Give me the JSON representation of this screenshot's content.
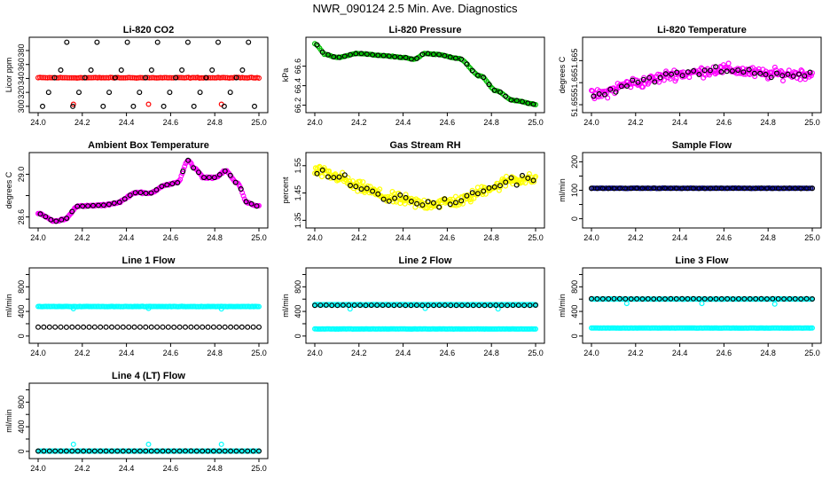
{
  "main_title": "NWR_090124  2.5 Min. Ave. Diagnostics",
  "colors": {
    "red": "#ff0000",
    "green": "#00c000",
    "magenta": "#ff00ff",
    "yellow": "#ffff00",
    "navy": "#000080",
    "cyan": "#00ffff",
    "black": "#000000"
  },
  "chart_data": [
    {
      "id": "co2",
      "type": "scatter",
      "title": "Li-820 CO2",
      "ylabel": "Licor ppm",
      "xlim": [
        24.0,
        25.0
      ],
      "ylim": [
        296,
        394
      ],
      "xticks": [
        "24.0",
        "24.2",
        "24.4",
        "24.6",
        "24.8",
        "25.0"
      ],
      "yticks": [
        300,
        320,
        340,
        360,
        380
      ],
      "series": [
        {
          "name": "Li-820 CO2 (avg)",
          "color": "red",
          "kind": "flat",
          "y": 341,
          "noise": 0.7,
          "n": 120
        },
        {
          "name": "Li-820 CO2 (min)",
          "color": "red",
          "kind": "points",
          "x": [
            24.16,
            24.5,
            24.83
          ],
          "y": [
            303,
            303,
            303
          ]
        },
        {
          "name": "Li-820 CO2 (samples)",
          "color": "black",
          "kind": "cycle",
          "levels": [
            300,
            320,
            341,
            352,
            392
          ],
          "n": 36
        }
      ]
    },
    {
      "id": "pressure",
      "type": "scatter",
      "title": "Li-820 Pressure",
      "ylabel": "kPa",
      "xlim": [
        24.0,
        25.0
      ],
      "ylim": [
        66.16,
        66.86
      ],
      "xticks": [
        "24.0",
        "24.2",
        "24.4",
        "24.6",
        "24.8",
        "25.0"
      ],
      "yticks": [
        66.2,
        66.4,
        66.6
      ],
      "series": [
        {
          "name": "Pressure",
          "color": "green",
          "kind": "curve",
          "noise": 0.005,
          "n": 140,
          "knots": [
            [
              24.0,
              66.83
            ],
            [
              24.05,
              66.72
            ],
            [
              24.1,
              66.69
            ],
            [
              24.2,
              66.73
            ],
            [
              24.3,
              66.71
            ],
            [
              24.4,
              66.69
            ],
            [
              24.45,
              66.67
            ],
            [
              24.5,
              66.73
            ],
            [
              24.55,
              66.72
            ],
            [
              24.65,
              66.68
            ],
            [
              24.75,
              66.5
            ],
            [
              24.82,
              66.35
            ],
            [
              24.9,
              66.25
            ],
            [
              25.0,
              66.21
            ]
          ]
        },
        {
          "name": "Pressure samples",
          "color": "black",
          "kind": "curve-sample",
          "n": 40
        }
      ]
    },
    {
      "id": "licor_temp",
      "type": "scatter",
      "title": "Li-820 Temperature",
      "ylabel": "degrees C",
      "xlim": [
        24.0,
        25.0
      ],
      "ylim": [
        51.654,
        51.6695
      ],
      "xticks": [
        "24.0",
        "24.2",
        "24.4",
        "24.6",
        "24.8",
        "25.0"
      ],
      "yticks": [
        51.655,
        51.66,
        51.665
      ],
      "ytick_labels": [
        "51.655",
        "51.66",
        "51.665"
      ],
      "series": [
        {
          "name": "Temperature",
          "color": "magenta",
          "kind": "curve",
          "noise": 0.0018,
          "n": 220,
          "knots": [
            [
              24.0,
              51.657
            ],
            [
              24.2,
              51.66
            ],
            [
              24.4,
              51.662
            ],
            [
              24.6,
              51.663
            ],
            [
              24.8,
              51.662
            ],
            [
              25.0,
              51.662
            ]
          ]
        },
        {
          "name": "Temperature samples",
          "color": "black",
          "kind": "curve-sample",
          "n": 40,
          "noise": 0.0012
        }
      ]
    },
    {
      "id": "ambient_temp",
      "type": "scatter",
      "title": "Ambient Box Temperature",
      "ylabel": "degrees C",
      "xlim": [
        24.0,
        25.0
      ],
      "ylim": [
        28.53,
        29.17
      ],
      "xticks": [
        "24.0",
        "24.2",
        "24.4",
        "24.6",
        "24.8",
        "25.0"
      ],
      "yticks": [
        28.6,
        28.8,
        29.0
      ],
      "ytick_labels": [
        "28.6",
        "",
        "29.0"
      ],
      "series": [
        {
          "name": "Ambient temperature",
          "color": "magenta",
          "kind": "curve",
          "noise": 0.01,
          "n": 200,
          "knots": [
            [
              24.0,
              28.63
            ],
            [
              24.08,
              28.56
            ],
            [
              24.12,
              28.58
            ],
            [
              24.18,
              28.7
            ],
            [
              24.3,
              28.71
            ],
            [
              24.35,
              28.73
            ],
            [
              24.45,
              28.83
            ],
            [
              24.5,
              28.82
            ],
            [
              24.58,
              28.9
            ],
            [
              24.63,
              28.92
            ],
            [
              24.68,
              29.13
            ],
            [
              24.71,
              29.05
            ],
            [
              24.75,
              28.97
            ],
            [
              24.8,
              28.97
            ],
            [
              24.85,
              29.03
            ],
            [
              24.9,
              28.92
            ],
            [
              24.95,
              28.73
            ],
            [
              25.0,
              28.7
            ]
          ]
        },
        {
          "name": "Ambient samples",
          "color": "black",
          "kind": "curve-sample",
          "n": 42
        }
      ]
    },
    {
      "id": "rh",
      "type": "scatter",
      "title": "Gas Stream RH",
      "ylabel": "percent",
      "xlim": [
        24.0,
        25.0
      ],
      "ylim": [
        1.335,
        1.585
      ],
      "xticks": [
        "24.0",
        "24.2",
        "24.4",
        "24.6",
        "24.8",
        "25.0"
      ],
      "yticks": [
        1.35,
        1.45,
        1.55
      ],
      "ytick_labels": [
        "1.35",
        "1.45",
        "1.55"
      ],
      "series": [
        {
          "name": "RH",
          "color": "yellow",
          "kind": "curve",
          "noise": 0.03,
          "n": 280,
          "knots": [
            [
              24.0,
              1.53
            ],
            [
              24.1,
              1.51
            ],
            [
              24.2,
              1.47
            ],
            [
              24.35,
              1.43
            ],
            [
              24.5,
              1.41
            ],
            [
              24.65,
              1.42
            ],
            [
              24.8,
              1.47
            ],
            [
              24.9,
              1.5
            ],
            [
              25.0,
              1.5
            ]
          ]
        },
        {
          "name": "RH samples",
          "color": "black",
          "kind": "curve-sample",
          "n": 40,
          "noise": 0.025
        }
      ]
    },
    {
      "id": "sample_flow",
      "type": "scatter",
      "title": "Sample Flow",
      "ylabel": "ml/min",
      "xlim": [
        24.0,
        25.0
      ],
      "ylim": [
        -20,
        220
      ],
      "xticks": [
        "24.0",
        "24.2",
        "24.4",
        "24.6",
        "24.8",
        "25.0"
      ],
      "yticks": [
        0,
        50,
        100,
        150,
        200
      ],
      "ytick_labels": [
        "0",
        "",
        "100",
        "",
        "200"
      ],
      "series": [
        {
          "name": "Sample flow",
          "color": "navy",
          "kind": "flat",
          "y": 107,
          "noise": 1.0,
          "n": 150
        },
        {
          "name": "Sample flow samples",
          "color": "black",
          "kind": "flat",
          "y": 107,
          "noise": 0.8,
          "n": 40
        }
      ]
    },
    {
      "id": "line1",
      "type": "scatter",
      "title": "Line 1 Flow",
      "ylabel": "ml/min",
      "xlim": [
        24.0,
        25.0
      ],
      "ylim": [
        -60,
        1050
      ],
      "xticks": [
        "24.0",
        "24.2",
        "24.4",
        "24.6",
        "24.8",
        "25.0"
      ],
      "yticks": [
        0,
        200,
        400,
        600,
        800,
        1000
      ],
      "ytick_labels": [
        "0",
        "",
        "400",
        "",
        "800",
        ""
      ],
      "series": [
        {
          "name": "Line 1 flow",
          "color": "cyan",
          "kind": "flat",
          "y": 480,
          "noise": 4,
          "n": 170
        },
        {
          "name": "Line 1 flow dips",
          "color": "cyan",
          "kind": "points",
          "x": [
            24.16,
            24.5,
            24.83
          ],
          "y": [
            445,
            450,
            440
          ]
        },
        {
          "name": "Line 1 samples",
          "color": "black",
          "kind": "flat",
          "y": 145,
          "noise": 2,
          "n": 40
        }
      ]
    },
    {
      "id": "line2",
      "type": "scatter",
      "title": "Line 2 Flow",
      "ylabel": "ml/min",
      "xlim": [
        24.0,
        25.0
      ],
      "ylim": [
        -60,
        1050
      ],
      "xticks": [
        "24.0",
        "24.2",
        "24.4",
        "24.6",
        "24.8",
        "25.0"
      ],
      "yticks": [
        0,
        200,
        400,
        600,
        800,
        1000
      ],
      "ytick_labels": [
        "0",
        "",
        "400",
        "",
        "800",
        ""
      ],
      "series": [
        {
          "name": "Line 2 flow high",
          "color": "cyan",
          "kind": "flat",
          "y": 510,
          "noise": 4,
          "n": 170
        },
        {
          "name": "Line 2 flow low",
          "color": "cyan",
          "kind": "flat",
          "y": 115,
          "noise": 2,
          "n": 170
        },
        {
          "name": "Line 2 flow dips",
          "color": "cyan",
          "kind": "points",
          "x": [
            24.16,
            24.5,
            24.83
          ],
          "y": [
            440,
            450,
            440
          ]
        },
        {
          "name": "Line 2 samples",
          "color": "black",
          "kind": "flat",
          "y": 500,
          "noise": 3,
          "n": 40
        }
      ]
    },
    {
      "id": "line3",
      "type": "scatter",
      "title": "Line 3 Flow",
      "ylabel": "ml/min",
      "xlim": [
        24.0,
        25.0
      ],
      "ylim": [
        -60,
        1050
      ],
      "xticks": [
        "24.0",
        "24.2",
        "24.4",
        "24.6",
        "24.8",
        "25.0"
      ],
      "yticks": [
        0,
        200,
        400,
        600,
        800,
        1000
      ],
      "ytick_labels": [
        "0",
        "",
        "400",
        "",
        "800",
        ""
      ],
      "series": [
        {
          "name": "Line 3 flow high",
          "color": "cyan",
          "kind": "flat",
          "y": 600,
          "noise": 4,
          "n": 170
        },
        {
          "name": "Line 3 flow low",
          "color": "cyan",
          "kind": "flat",
          "y": 130,
          "noise": 2,
          "n": 170
        },
        {
          "name": "Line 3 flow dips",
          "color": "cyan",
          "kind": "points",
          "x": [
            24.16,
            24.5,
            24.83
          ],
          "y": [
            530,
            530,
            520
          ]
        },
        {
          "name": "Line 3 samples",
          "color": "black",
          "kind": "flat",
          "y": 605,
          "noise": 3,
          "n": 40
        }
      ]
    },
    {
      "id": "line4",
      "type": "scatter",
      "title": "Line 4 (LT) Flow",
      "ylabel": "ml/min",
      "xlim": [
        24.0,
        25.0
      ],
      "ylim": [
        -60,
        1050
      ],
      "xticks": [
        "24.0",
        "24.2",
        "24.4",
        "24.6",
        "24.8",
        "25.0"
      ],
      "yticks": [
        0,
        200,
        400,
        600,
        800,
        1000
      ],
      "ytick_labels": [
        "0",
        "",
        "400",
        "",
        "800",
        ""
      ],
      "series": [
        {
          "name": "Line 4 flow",
          "color": "cyan",
          "kind": "flat",
          "y": 5,
          "noise": 1,
          "n": 170
        },
        {
          "name": "Line 4 flow spikes",
          "color": "cyan",
          "kind": "points",
          "x": [
            24.16,
            24.5,
            24.83
          ],
          "y": [
            115,
            115,
            115
          ]
        },
        {
          "name": "Line 4 samples",
          "color": "black",
          "kind": "flat",
          "y": 5,
          "noise": 1,
          "n": 40
        }
      ]
    }
  ]
}
